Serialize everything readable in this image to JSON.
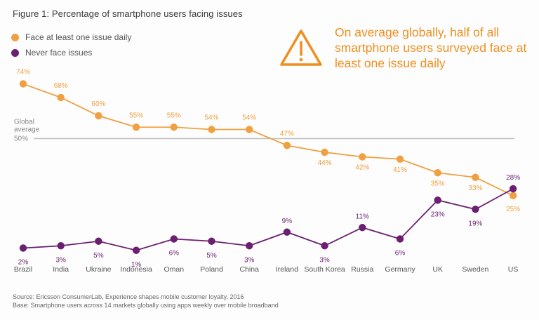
{
  "title": "Figure 1: Percentage of smartphone users facing issues",
  "callout": "On average globally, half of all smartphone users surveyed face at least one issue daily",
  "reference_line": {
    "label_line1": "Global",
    "label_line2": "average",
    "value_label": "50%",
    "value": 50
  },
  "colors": {
    "daily": "#f0a040",
    "never": "#6b1f70",
    "avg_line": "#bdbdbd",
    "text": "#555555"
  },
  "icons": {
    "warning": "warning-triangle-icon"
  },
  "source": "Source: Ericsson ConsumerLab, Experience shapes mobile customer loyalty, 2016",
  "base": "Base: Smartphone users across 14 markets globally using apps weekly over mobile broadband",
  "chart_data": {
    "type": "line",
    "title": "Figure 1: Percentage of smartphone users facing issues",
    "categories": [
      "Brazil",
      "India",
      "Ukraine",
      "Indonesia",
      "Oman",
      "Poland",
      "China",
      "Ireland",
      "South Korea",
      "Russia",
      "Germany",
      "UK",
      "Sweden",
      "US"
    ],
    "series": [
      {
        "name": "Face at least one issue daily",
        "values": [
          74,
          68,
          60,
          55,
          55,
          54,
          54,
          47,
          44,
          42,
          41,
          35,
          33,
          25
        ]
      },
      {
        "name": "Never face issues",
        "values": [
          2,
          3,
          5,
          1,
          6,
          5,
          3,
          9,
          3,
          11,
          6,
          23,
          19,
          28
        ]
      }
    ],
    "ylim": [
      0,
      80
    ],
    "grid": false,
    "legend": "top-left",
    "unit": "%"
  }
}
